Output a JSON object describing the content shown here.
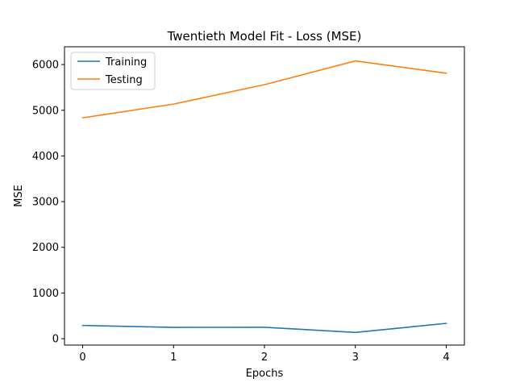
{
  "chart_data": {
    "type": "line",
    "title": "Twentieth Model Fit - Loss (MSE)",
    "xlabel": "Epochs",
    "ylabel": "MSE",
    "x": [
      0,
      1,
      2,
      3,
      4
    ],
    "xlim": [
      -0.2,
      4.2
    ],
    "ylim": [
      -140,
      6390
    ],
    "xticks": [
      "0",
      "1",
      "2",
      "3",
      "4"
    ],
    "yticks": [
      "0",
      "1000",
      "2000",
      "3000",
      "4000",
      "5000",
      "6000"
    ],
    "ytick_values": [
      0,
      1000,
      2000,
      3000,
      4000,
      5000,
      6000
    ],
    "legend_position": "upper-left",
    "grid": false,
    "series": [
      {
        "name": "Training",
        "color": "#1f77b4",
        "values": [
          290,
          247,
          250,
          137,
          335
        ]
      },
      {
        "name": "Testing",
        "color": "#ff7f0e",
        "values": [
          4835,
          5135,
          5560,
          6080,
          5810
        ]
      }
    ]
  }
}
